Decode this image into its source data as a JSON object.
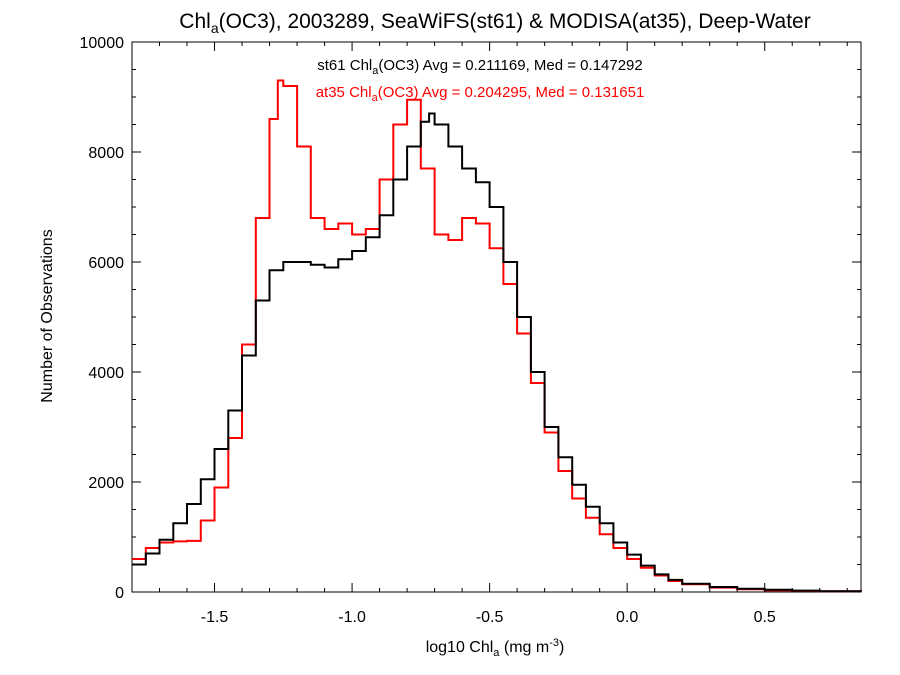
{
  "chart_data": {
    "type": "line",
    "title": "Chl",
    "title_sub": "a",
    "title_rest": "(OC3), 2003289, SeaWiFS(st61) & MODISA(at35), Deep-Water",
    "xlabel": "log10 Chl",
    "xlabel_sub": "a",
    "xlabel_unit": " (mg m",
    "xlabel_sup": "-3",
    "xlabel_close": ")",
    "ylabel": "Number of Observations",
    "xlim": [
      -1.8,
      0.85
    ],
    "ylim": [
      0,
      10000
    ],
    "xticks": [
      {
        "value": -1.5,
        "label": "-1.5"
      },
      {
        "value": -1.0,
        "label": "-1.0"
      },
      {
        "value": -0.5,
        "label": "-0.5"
      },
      {
        "value": 0.0,
        "label": "0.0"
      },
      {
        "value": 0.5,
        "label": "0.5"
      }
    ],
    "yticks": [
      {
        "value": 0,
        "label": "0"
      },
      {
        "value": 2000,
        "label": "2000"
      },
      {
        "value": 4000,
        "label": "4000"
      },
      {
        "value": 6000,
        "label": "6000"
      },
      {
        "value": 8000,
        "label": "8000"
      },
      {
        "value": 10000,
        "label": "10000"
      }
    ],
    "grid": false,
    "step": "histogram",
    "series": [
      {
        "name": "st61",
        "color": "#000000",
        "annotation": {
          "pre": "st61 Chl",
          "sub": "a",
          "post": "(OC3) Avg = 0.211169, Med = 0.147292"
        },
        "x": [
          -1.8,
          -1.75,
          -1.7,
          -1.65,
          -1.6,
          -1.55,
          -1.5,
          -1.45,
          -1.4,
          -1.35,
          -1.3,
          -1.25,
          -1.2,
          -1.15,
          -1.1,
          -1.05,
          -1.0,
          -0.95,
          -0.9,
          -0.85,
          -0.8,
          -0.75,
          -0.72,
          -0.7,
          -0.65,
          -0.6,
          -0.55,
          -0.5,
          -0.45,
          -0.4,
          -0.35,
          -0.3,
          -0.25,
          -0.2,
          -0.15,
          -0.1,
          -0.05,
          0.0,
          0.05,
          0.1,
          0.15,
          0.2,
          0.3,
          0.4,
          0.5,
          0.6,
          0.7,
          0.85
        ],
        "y": [
          500,
          700,
          950,
          1250,
          1600,
          2050,
          2600,
          3300,
          4300,
          5300,
          5850,
          6000,
          6000,
          5950,
          5900,
          6050,
          6200,
          6450,
          6850,
          7500,
          8100,
          8550,
          8700,
          8500,
          8100,
          7700,
          7450,
          7000,
          6000,
          5000,
          4000,
          3000,
          2450,
          1950,
          1550,
          1250,
          900,
          680,
          480,
          320,
          220,
          150,
          90,
          60,
          40,
          25,
          15,
          10
        ]
      },
      {
        "name": "at35",
        "color": "#ff0000",
        "annotation": {
          "pre": "at35 Chl",
          "sub": "a",
          "post": "(OC3) Avg = 0.204295, Med = 0.131651"
        },
        "x": [
          -1.8,
          -1.75,
          -1.7,
          -1.65,
          -1.6,
          -1.55,
          -1.5,
          -1.45,
          -1.4,
          -1.35,
          -1.3,
          -1.27,
          -1.25,
          -1.2,
          -1.15,
          -1.1,
          -1.05,
          -1.0,
          -0.95,
          -0.9,
          -0.85,
          -0.8,
          -0.75,
          -0.7,
          -0.65,
          -0.6,
          -0.55,
          -0.5,
          -0.45,
          -0.4,
          -0.35,
          -0.3,
          -0.25,
          -0.2,
          -0.15,
          -0.1,
          -0.05,
          0.0,
          0.05,
          0.1,
          0.15,
          0.2,
          0.3,
          0.4,
          0.5,
          0.6,
          0.7,
          0.85
        ],
        "y": [
          600,
          800,
          900,
          920,
          930,
          1300,
          1900,
          2800,
          4500,
          6800,
          8600,
          9300,
          9200,
          8100,
          6800,
          6600,
          6700,
          6500,
          6600,
          7500,
          8500,
          8950,
          7700,
          6500,
          6400,
          6800,
          6700,
          6250,
          5600,
          4700,
          3800,
          2900,
          2200,
          1700,
          1350,
          1050,
          800,
          600,
          440,
          300,
          200,
          140,
          80,
          50,
          30,
          20,
          12,
          8
        ]
      }
    ]
  }
}
